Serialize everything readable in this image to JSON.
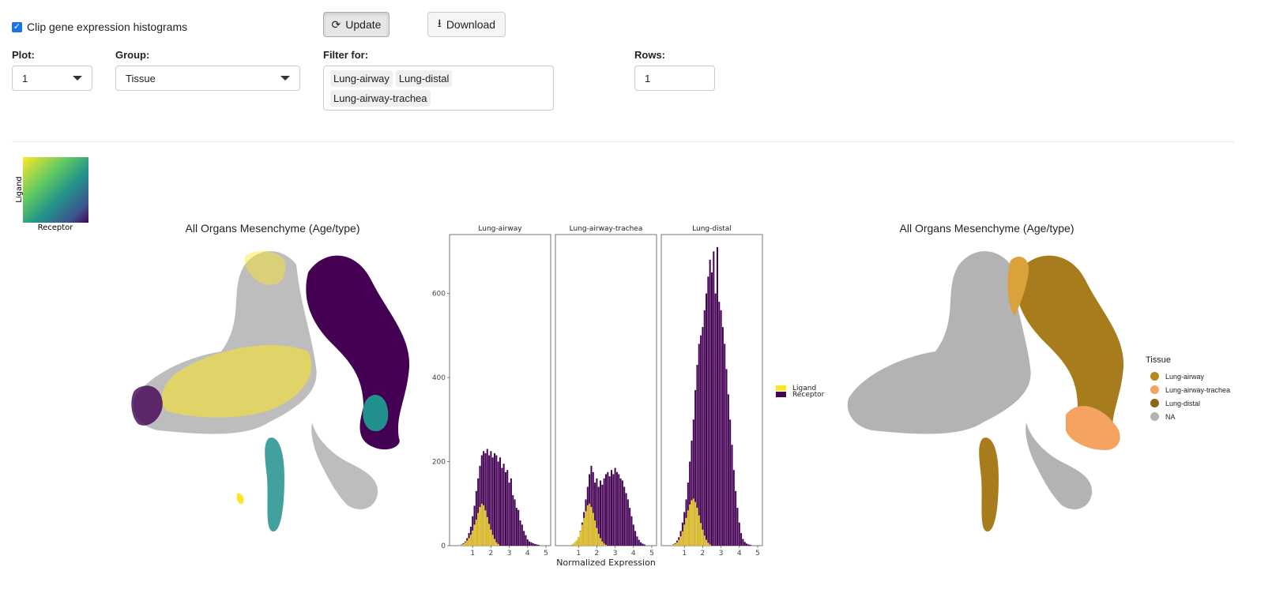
{
  "controls": {
    "clip_checkbox": {
      "label": "Clip gene expression histograms",
      "checked": true
    },
    "update_button": "Update",
    "download_button": "Download",
    "plot": {
      "label": "Plot:",
      "value": "1"
    },
    "group": {
      "label": "Group:",
      "value": "Tissue"
    },
    "filter": {
      "label": "Filter for:",
      "chips": [
        "Lung-airway",
        "Lung-distal",
        "Lung-airway-trachea"
      ]
    },
    "rows": {
      "label": "Rows:",
      "value": "1"
    }
  },
  "colorkey": {
    "ylabel": "Ligand",
    "xlabel": "Receptor"
  },
  "left_plot": {
    "title": "All Organs Mesenchyme (Age/type)"
  },
  "right_plot": {
    "title": "All Organs Mesenchyme (Age/type)",
    "legend_title": "Tissue",
    "legend": [
      {
        "name": "Lung-airway",
        "color": "#b8861e"
      },
      {
        "name": "Lung-airway-trachea",
        "color": "#f4a460"
      },
      {
        "name": "Lung-distal",
        "color": "#8b6914"
      },
      {
        "name": "NA",
        "color": "#b3b3b3"
      }
    ]
  },
  "chart_data": {
    "type": "bar",
    "xlabel": "Normalized Expression",
    "ylabel": "",
    "xlim": [
      0,
      5
    ],
    "ylim": [
      0,
      740
    ],
    "xticks": [
      1,
      2,
      3,
      4,
      5
    ],
    "yticks": [
      0,
      200,
      400,
      600
    ],
    "legend": [
      {
        "name": "Ligand",
        "color": "#fde725"
      },
      {
        "name": "Receptor",
        "color": "#440154"
      }
    ],
    "panels": [
      {
        "name": "Lung-airway",
        "ligand": {
          "x": [
            0.4,
            0.5,
            0.6,
            0.7,
            0.8,
            0.9,
            1.0,
            1.1,
            1.2,
            1.3,
            1.4,
            1.5,
            1.6,
            1.7,
            1.8,
            1.9,
            2.0,
            2.1,
            2.2,
            2.3,
            2.4
          ],
          "values": [
            2,
            4,
            8,
            12,
            18,
            26,
            36,
            50,
            62,
            78,
            92,
            100,
            96,
            84,
            68,
            52,
            38,
            26,
            16,
            8,
            4
          ]
        },
        "receptor": {
          "x": [
            0.4,
            0.5,
            0.6,
            0.7,
            0.8,
            0.9,
            1.0,
            1.1,
            1.2,
            1.3,
            1.4,
            1.5,
            1.6,
            1.7,
            1.8,
            1.9,
            2.0,
            2.1,
            2.2,
            2.3,
            2.4,
            2.5,
            2.6,
            2.7,
            2.8,
            2.9,
            3.0,
            3.1,
            3.2,
            3.3,
            3.4,
            3.5,
            3.6,
            3.7,
            3.8,
            3.9,
            4.0,
            4.1,
            4.2,
            4.3,
            4.4,
            4.5,
            4.6
          ],
          "values": [
            3,
            6,
            10,
            18,
            30,
            45,
            70,
            95,
            130,
            160,
            190,
            215,
            225,
            220,
            230,
            215,
            225,
            210,
            220,
            215,
            200,
            210,
            185,
            195,
            175,
            180,
            150,
            160,
            120,
            110,
            90,
            85,
            60,
            50,
            35,
            25,
            15,
            10,
            8,
            6,
            4,
            3,
            2
          ]
        }
      },
      {
        "name": "Lung-airway-trachea",
        "ligand": {
          "x": [
            0.6,
            0.7,
            0.8,
            0.9,
            1.0,
            1.1,
            1.2,
            1.3,
            1.4,
            1.5,
            1.6,
            1.7,
            1.8,
            1.9,
            2.0,
            2.1,
            2.2,
            2.3,
            2.4,
            2.5
          ],
          "values": [
            2,
            4,
            8,
            14,
            22,
            34,
            50,
            66,
            82,
            96,
            100,
            92,
            78,
            60,
            42,
            28,
            18,
            10,
            5,
            2
          ]
        },
        "receptor": {
          "x": [
            0.6,
            0.7,
            0.8,
            0.9,
            1.0,
            1.1,
            1.2,
            1.3,
            1.4,
            1.5,
            1.6,
            1.7,
            1.8,
            1.9,
            2.0,
            2.1,
            2.2,
            2.3,
            2.4,
            2.5,
            2.6,
            2.7,
            2.8,
            2.9,
            3.0,
            3.1,
            3.2,
            3.3,
            3.4,
            3.5,
            3.6,
            3.7,
            3.8,
            3.9,
            4.0,
            4.1,
            4.2,
            4.3,
            4.4,
            4.5,
            4.6
          ],
          "values": [
            2,
            4,
            8,
            12,
            20,
            35,
            55,
            80,
            110,
            140,
            170,
            190,
            175,
            150,
            160,
            140,
            155,
            145,
            160,
            170,
            175,
            165,
            180,
            170,
            185,
            175,
            170,
            160,
            155,
            140,
            125,
            110,
            90,
            70,
            50,
            35,
            22,
            14,
            8,
            5,
            3
          ]
        }
      },
      {
        "name": "Lung-distal",
        "ligand": {
          "x": [
            0.4,
            0.5,
            0.6,
            0.7,
            0.8,
            0.9,
            1.0,
            1.1,
            1.2,
            1.3,
            1.4,
            1.5,
            1.6,
            1.7,
            1.8,
            1.9,
            2.0,
            2.1,
            2.2,
            2.3,
            2.4
          ],
          "values": [
            2,
            4,
            8,
            14,
            22,
            34,
            50,
            66,
            84,
            98,
            108,
            112,
            104,
            90,
            72,
            54,
            38,
            24,
            14,
            7,
            3
          ]
        },
        "receptor": {
          "x": [
            0.4,
            0.5,
            0.6,
            0.7,
            0.8,
            0.9,
            1.0,
            1.1,
            1.2,
            1.3,
            1.4,
            1.5,
            1.6,
            1.7,
            1.8,
            1.9,
            2.0,
            2.1,
            2.2,
            2.3,
            2.4,
            2.5,
            2.6,
            2.7,
            2.8,
            2.9,
            3.0,
            3.1,
            3.2,
            3.3,
            3.4,
            3.5,
            3.6,
            3.7,
            3.8,
            3.9,
            4.0,
            4.1,
            4.2,
            4.3,
            4.4,
            4.5,
            4.6
          ],
          "values": [
            3,
            6,
            12,
            20,
            35,
            55,
            80,
            110,
            150,
            200,
            250,
            300,
            370,
            430,
            480,
            500,
            520,
            560,
            600,
            640,
            680,
            650,
            700,
            600,
            710,
            580,
            560,
            520,
            480,
            420,
            360,
            300,
            240,
            180,
            130,
            90,
            55,
            30,
            16,
            9,
            5,
            3,
            2
          ]
        }
      }
    ]
  }
}
